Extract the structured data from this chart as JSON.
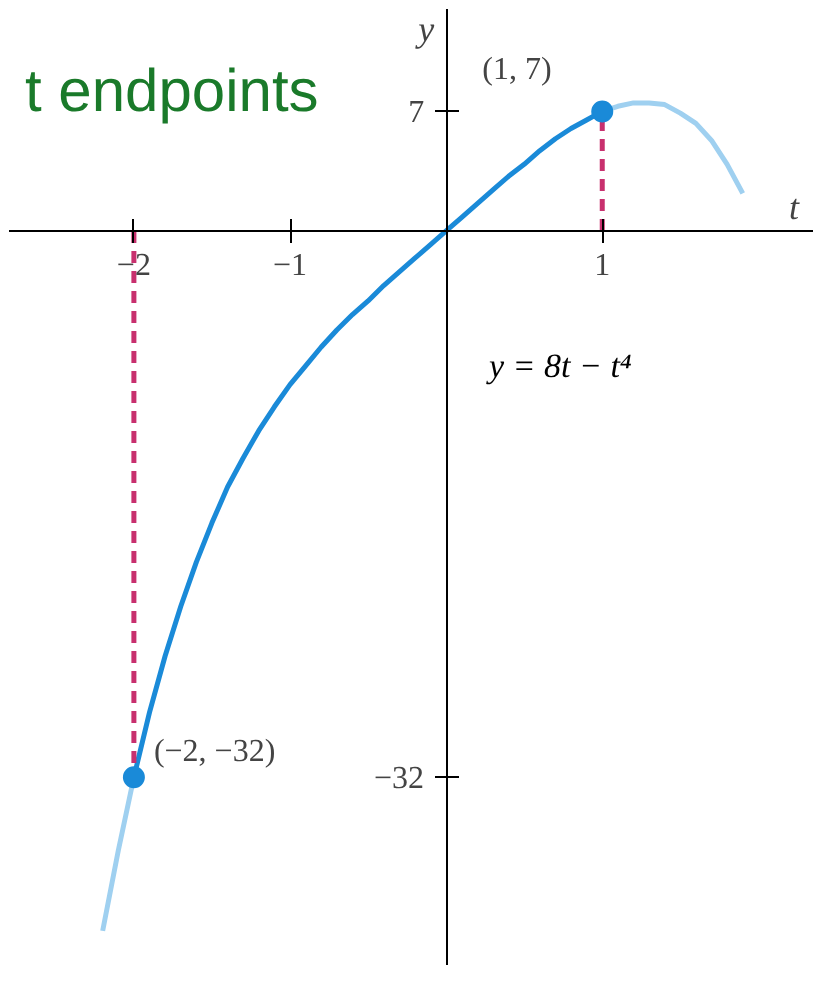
{
  "chart_data": {
    "type": "line",
    "xlabel": "t",
    "ylabel": "y",
    "xlim": [
      -2.8,
      2.35
    ],
    "ylim": [
      -43,
      13
    ],
    "xticks": [
      {
        "value": -2,
        "label": "−2"
      },
      {
        "value": -1,
        "label": "−1"
      },
      {
        "value": 1,
        "label": "1"
      }
    ],
    "yticks": [
      {
        "value": 7,
        "label": "7"
      },
      {
        "value": -32,
        "label": "−32"
      }
    ],
    "grid": false,
    "series": [
      {
        "color": "#9fd0f0",
        "x": [
          -2.2,
          -2.1,
          -2.0
        ],
        "values": [
          -41.0,
          -36.3,
          -32.0
        ]
      },
      {
        "color": "#1a8ad8",
        "x": [
          -2.0,
          -1.9,
          -1.8,
          -1.7,
          -1.6,
          -1.5,
          -1.4,
          -1.3,
          -1.2,
          -1.1,
          -1.0,
          -0.9,
          -0.8,
          -0.7,
          -0.6,
          -0.5,
          -0.4,
          -0.3,
          -0.2,
          -0.1,
          0,
          0.1,
          0.2,
          0.3,
          0.4,
          0.5,
          0.6,
          0.7,
          0.8,
          0.9,
          1.0
        ],
        "values": [
          -32.0,
          -28.2,
          -24.9,
          -22.0,
          -19.4,
          -17.1,
          -15.0,
          -13.3,
          -11.7,
          -10.3,
          -9.0,
          -7.9,
          -6.8,
          -5.8,
          -4.9,
          -4.1,
          -3.2,
          -2.4,
          -1.6,
          -0.8,
          0,
          0.8,
          1.6,
          2.4,
          3.2,
          3.9,
          4.7,
          5.4,
          6.0,
          6.5,
          7.0
        ]
      },
      {
        "color": "#9fd0f0",
        "x": [
          1.0,
          1.1,
          1.2,
          1.3,
          1.4,
          1.5,
          1.6,
          1.7,
          1.8,
          1.9
        ],
        "values": [
          7.0,
          7.3,
          7.5,
          7.5,
          7.4,
          6.9,
          6.3,
          5.3,
          3.9,
          2.2
        ]
      },
      {
        "color": "#c8306e",
        "line_style": "dashed",
        "x": [
          -2,
          -2
        ],
        "values": [
          0,
          -32
        ]
      },
      {
        "color": "#c8306e",
        "line_style": "dashed",
        "x": [
          1,
          1
        ],
        "values": [
          0,
          7
        ]
      },
      {
        "type": "scatter",
        "color": "#1a8ad8",
        "marker": "circle",
        "x": [
          -2,
          1
        ],
        "values": [
          -32,
          7
        ]
      }
    ],
    "annotations": [
      "t endpoints",
      "y = 8t − t⁴",
      {
        "text": "(1, 7)",
        "x": 1,
        "y": 7
      },
      {
        "text": "(−2, −32)",
        "x": -2,
        "y": -32
      }
    ]
  }
}
